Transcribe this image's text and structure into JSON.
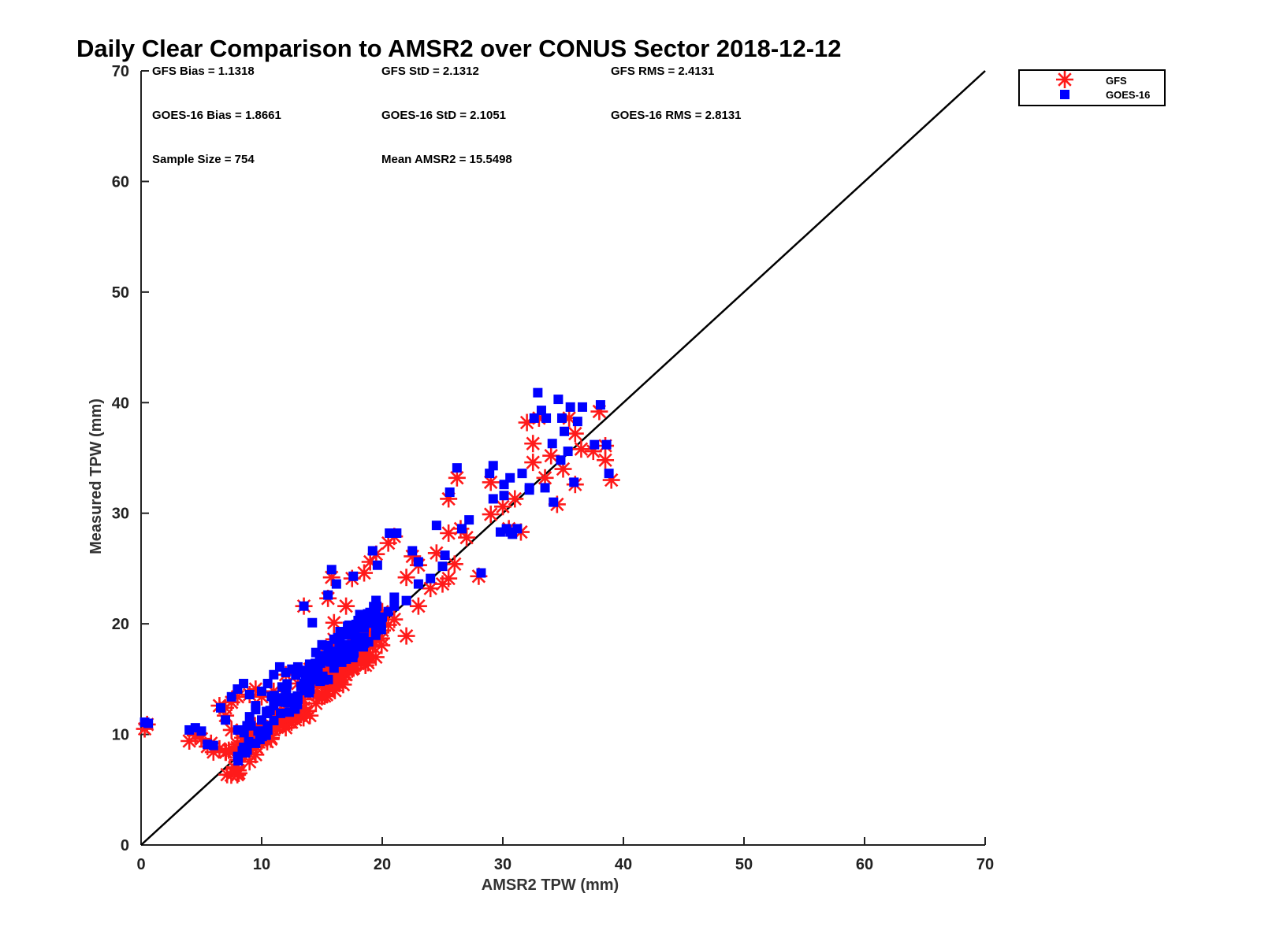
{
  "chart_data": {
    "type": "scatter",
    "title": "Daily Clear Comparison to AMSR2 over CONUS Sector 2018-12-12",
    "xlabel": "AMSR2 TPW (mm)",
    "ylabel": "Measured TPW (mm)",
    "xlim": [
      0,
      70
    ],
    "ylim": [
      0,
      70
    ],
    "xticks": [
      "0",
      "10",
      "20",
      "30",
      "40",
      "50",
      "60",
      "70"
    ],
    "yticks": [
      "0",
      "10",
      "20",
      "30",
      "40",
      "50",
      "60",
      "70"
    ],
    "grid": false,
    "legend_position": "top-right, outside plot",
    "reference_line": {
      "from": [
        0,
        0
      ],
      "to": [
        70,
        70
      ],
      "color": "#000000"
    },
    "stats": [
      "GFS Bias = 1.1318",
      "GFS StD = 2.1312",
      "GFS RMS = 2.4131",
      "GOES-16 Bias = 1.8661",
      "GOES-16 StD = 2.1051",
      "GOES-16 RMS = 2.8131",
      "Sample Size = 754",
      "Mean AMSR2 = 15.5498"
    ],
    "series": [
      {
        "name": "GFS",
        "marker": "asterisk",
        "color": "#ff1a1a",
        "points": [
          [
            0.3,
            10.5
          ],
          [
            0.5,
            10.9
          ],
          [
            4.0,
            9.4
          ],
          [
            4.5,
            9.9
          ],
          [
            5.0,
            9.6
          ],
          [
            5.5,
            8.9
          ],
          [
            6.0,
            8.4
          ],
          [
            6.5,
            8.7
          ],
          [
            5.8,
            9.2
          ],
          [
            6.5,
            12.6
          ],
          [
            7.0,
            11.7
          ],
          [
            7.5,
            10.4
          ],
          [
            8.0,
            9.1
          ],
          [
            8.5,
            8.6
          ],
          [
            9.0,
            9.6
          ],
          [
            9.5,
            8.9
          ],
          [
            10.0,
            9.4
          ],
          [
            10.5,
            9.9
          ],
          [
            11.0,
            10.4
          ],
          [
            11.5,
            10.8
          ],
          [
            12.0,
            10.6
          ],
          [
            12.5,
            11.4
          ],
          [
            13.0,
            11.9
          ],
          [
            13.5,
            12.4
          ],
          [
            14.0,
            11.7
          ],
          [
            14.5,
            12.8
          ],
          [
            15.0,
            13.4
          ],
          [
            15.5,
            13.9
          ],
          [
            16.0,
            14.4
          ],
          [
            16.5,
            14.7
          ],
          [
            17.0,
            15.4
          ],
          [
            17.5,
            15.9
          ],
          [
            18.0,
            16.4
          ],
          [
            18.5,
            17.2
          ],
          [
            19.0,
            18.1
          ],
          [
            19.5,
            18.6
          ],
          [
            20.0,
            19.4
          ],
          [
            20.5,
            19.9
          ],
          [
            21.0,
            20.4
          ],
          [
            22.0,
            18.9
          ],
          [
            23.0,
            21.6
          ],
          [
            24.0,
            23.2
          ],
          [
            25.0,
            23.6
          ],
          [
            25.5,
            24.1
          ],
          [
            26.0,
            25.4
          ],
          [
            7.0,
            12.4
          ],
          [
            7.5,
            12.9
          ],
          [
            8.0,
            13.4
          ],
          [
            9.0,
            13.6
          ],
          [
            9.5,
            14.1
          ],
          [
            10.0,
            13.4
          ],
          [
            11.0,
            13.9
          ],
          [
            12.0,
            15.4
          ],
          [
            13.0,
            14.6
          ],
          [
            14.0,
            15.9
          ],
          [
            15.0,
            17.2
          ],
          [
            16.0,
            18.6
          ],
          [
            17.0,
            17.4
          ],
          [
            18.0,
            19.6
          ],
          [
            19.0,
            20.4
          ],
          [
            13.5,
            21.6
          ],
          [
            15.5,
            22.3
          ],
          [
            15.8,
            24.2
          ],
          [
            17.5,
            24.1
          ],
          [
            19.0,
            25.6
          ],
          [
            19.5,
            26.3
          ],
          [
            20.5,
            27.3
          ],
          [
            21.0,
            27.9
          ],
          [
            22.0,
            24.2
          ],
          [
            22.5,
            26.1
          ],
          [
            23.0,
            25.3
          ],
          [
            24.5,
            26.4
          ],
          [
            25.5,
            28.2
          ],
          [
            26.2,
            33.2
          ],
          [
            25.5,
            31.3
          ],
          [
            26.5,
            28.6
          ],
          [
            27.0,
            27.8
          ],
          [
            28.0,
            24.3
          ],
          [
            29.0,
            32.8
          ],
          [
            29.0,
            29.9
          ],
          [
            30.0,
            30.6
          ],
          [
            30.5,
            28.6
          ],
          [
            31.0,
            31.3
          ],
          [
            31.5,
            28.3
          ],
          [
            32.0,
            38.2
          ],
          [
            32.5,
            36.3
          ],
          [
            32.5,
            34.6
          ],
          [
            33.0,
            38.6
          ],
          [
            33.5,
            33.2
          ],
          [
            34.0,
            35.2
          ],
          [
            34.5,
            30.8
          ],
          [
            35.0,
            34.0
          ],
          [
            35.5,
            38.6
          ],
          [
            36.0,
            32.6
          ],
          [
            36.0,
            37.2
          ],
          [
            36.5,
            35.8
          ],
          [
            37.5,
            35.6
          ],
          [
            38.0,
            39.2
          ],
          [
            38.5,
            36.1
          ],
          [
            38.5,
            34.8
          ],
          [
            39.0,
            33.0
          ],
          [
            20.0,
            21.1
          ],
          [
            18.5,
            24.6
          ],
          [
            16.0,
            20.1
          ],
          [
            17.0,
            21.6
          ]
        ]
      },
      {
        "name": "GOES-16",
        "marker": "square",
        "color": "#0000ff",
        "points": [
          [
            0.3,
            11.1
          ],
          [
            0.6,
            11.0
          ],
          [
            4.0,
            10.4
          ],
          [
            4.5,
            10.6
          ],
          [
            5.0,
            10.3
          ],
          [
            5.5,
            9.1
          ],
          [
            6.0,
            9.0
          ],
          [
            6.6,
            12.4
          ],
          [
            7.0,
            11.3
          ],
          [
            7.5,
            13.4
          ],
          [
            8.0,
            14.1
          ],
          [
            8.5,
            14.6
          ],
          [
            9.0,
            13.6
          ],
          [
            9.5,
            12.6
          ],
          [
            10.0,
            13.9
          ],
          [
            10.5,
            14.6
          ],
          [
            11.0,
            15.4
          ],
          [
            11.5,
            16.1
          ],
          [
            12.0,
            15.6
          ],
          [
            12.5,
            15.9
          ],
          [
            13.0,
            16.1
          ],
          [
            13.5,
            14.6
          ],
          [
            14.0,
            15.9
          ],
          [
            14.5,
            17.4
          ],
          [
            15.0,
            18.1
          ],
          [
            15.5,
            17.6
          ],
          [
            16.0,
            18.6
          ],
          [
            16.5,
            19.3
          ],
          [
            17.0,
            18.1
          ],
          [
            17.5,
            19.6
          ],
          [
            18.0,
            20.3
          ],
          [
            18.5,
            19.6
          ],
          [
            19.0,
            20.9
          ],
          [
            19.5,
            19.4
          ],
          [
            20.0,
            20.6
          ],
          [
            20.5,
            21.1
          ],
          [
            21.0,
            21.6
          ],
          [
            22.0,
            22.1
          ],
          [
            23.0,
            23.6
          ],
          [
            24.0,
            24.1
          ],
          [
            25.0,
            25.2
          ],
          [
            9.0,
            11.6
          ],
          [
            10.0,
            11.3
          ],
          [
            11.0,
            12.6
          ],
          [
            12.0,
            12.9
          ],
          [
            13.0,
            13.2
          ],
          [
            14.0,
            14.1
          ],
          [
            15.0,
            15.2
          ],
          [
            16.0,
            16.0
          ],
          [
            13.5,
            21.6
          ],
          [
            14.2,
            20.1
          ],
          [
            15.5,
            22.6
          ],
          [
            15.8,
            24.9
          ],
          [
            16.2,
            23.6
          ],
          [
            17.6,
            24.3
          ],
          [
            19.2,
            26.6
          ],
          [
            19.6,
            25.3
          ],
          [
            20.6,
            28.2
          ],
          [
            21.2,
            28.2
          ],
          [
            21.0,
            22.4
          ],
          [
            22.5,
            26.6
          ],
          [
            23.0,
            25.6
          ],
          [
            24.5,
            28.9
          ],
          [
            25.2,
            26.2
          ],
          [
            25.6,
            31.9
          ],
          [
            26.2,
            34.1
          ],
          [
            26.6,
            28.6
          ],
          [
            27.2,
            29.4
          ],
          [
            28.2,
            24.6
          ],
          [
            29.2,
            34.3
          ],
          [
            28.9,
            33.6
          ],
          [
            29.2,
            31.3
          ],
          [
            30.1,
            32.6
          ],
          [
            30.1,
            31.6
          ],
          [
            30.6,
            33.2
          ],
          [
            29.8,
            28.3
          ],
          [
            30.3,
            28.6
          ],
          [
            30.8,
            28.1
          ],
          [
            31.2,
            28.6
          ],
          [
            31.6,
            33.6
          ],
          [
            32.2,
            32.3
          ],
          [
            32.6,
            38.6
          ],
          [
            32.9,
            40.9
          ],
          [
            33.2,
            39.3
          ],
          [
            33.6,
            38.6
          ],
          [
            34.1,
            36.3
          ],
          [
            34.6,
            40.3
          ],
          [
            34.9,
            38.6
          ],
          [
            35.1,
            37.4
          ],
          [
            35.6,
            39.6
          ],
          [
            36.2,
            38.3
          ],
          [
            36.6,
            39.6
          ],
          [
            35.4,
            35.6
          ],
          [
            35.9,
            32.8
          ],
          [
            34.2,
            31.0
          ],
          [
            33.5,
            32.3
          ],
          [
            34.8,
            34.8
          ],
          [
            37.6,
            36.2
          ],
          [
            38.1,
            39.8
          ],
          [
            38.6,
            36.2
          ],
          [
            38.8,
            33.6
          ],
          [
            32.2,
            32.1
          ],
          [
            30.6,
            28.3
          ]
        ]
      }
    ]
  }
}
